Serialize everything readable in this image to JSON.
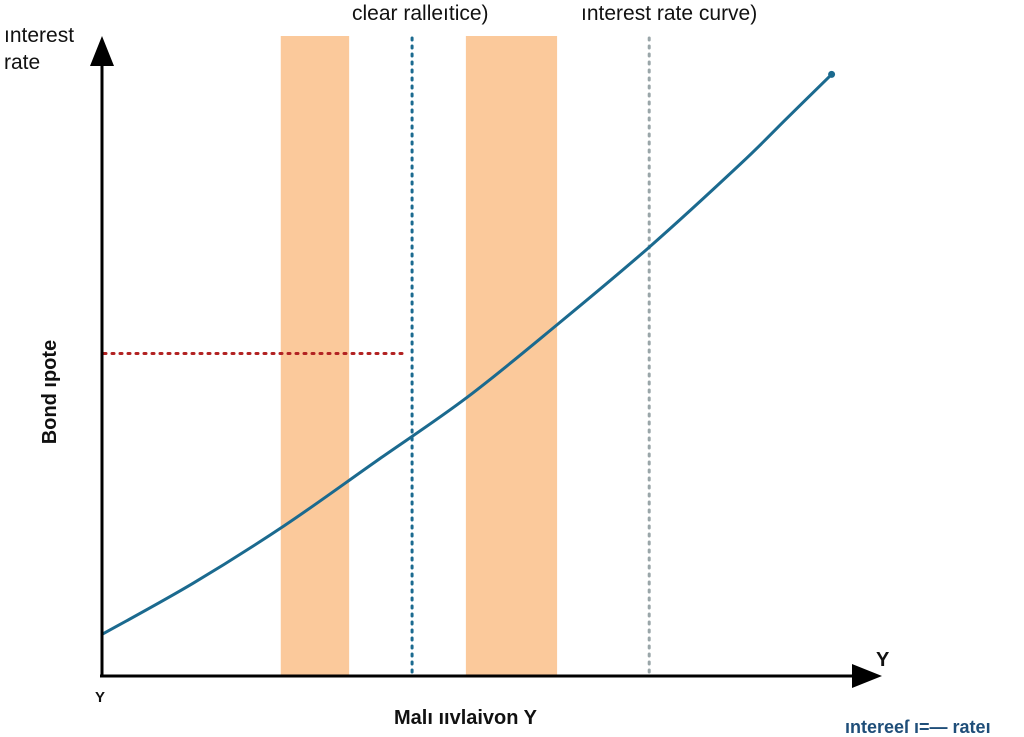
{
  "chart_data": {
    "type": "line",
    "title_left": "clear ralleıtice)",
    "title_right": "ınterest rate curve)",
    "y_axis_top_label": "ınterest rate",
    "ylabel": "Bond ıpote",
    "xlabel": "Malı ııvlaivon Y",
    "origin_tick": "Y",
    "x_axis_end_label": "Y",
    "footer_legend": "ıntereeſ ı=— rateı",
    "xlim": [
      0,
      100
    ],
    "ylim": [
      0,
      100
    ],
    "series": [
      {
        "values": [
          {
            "x": 0,
            "y": 6.5
          },
          {
            "x": 10,
            "y": 14.5
          },
          {
            "x": 20,
            "y": 23.5
          },
          {
            "x": 30,
            "y": 33.5
          },
          {
            "x": 40,
            "y": 43.5
          },
          {
            "x": 50,
            "y": 55
          },
          {
            "x": 60,
            "y": 67
          },
          {
            "x": 70,
            "y": 80
          },
          {
            "x": 75,
            "y": 87
          },
          {
            "x": 80,
            "y": 94
          }
        ],
        "color": "#1b6a8f"
      }
    ],
    "shaded_bands": [
      {
        "x_start": 19.6,
        "x_end": 27.1,
        "color": "#fbc99b"
      },
      {
        "x_start": 39.9,
        "x_end": 49.9,
        "color": "#fbc99b"
      }
    ],
    "vertical_markers": [
      {
        "x": 34.0,
        "color": "#1b6a8f",
        "style": "dotted"
      },
      {
        "x": 60.0,
        "color": "#9aa6a9",
        "style": "dotted"
      }
    ],
    "horizontal_reference": {
      "y": 50.4,
      "x_end": 33.0,
      "color": "#b22222",
      "style": "dotted"
    },
    "grid": false
  }
}
